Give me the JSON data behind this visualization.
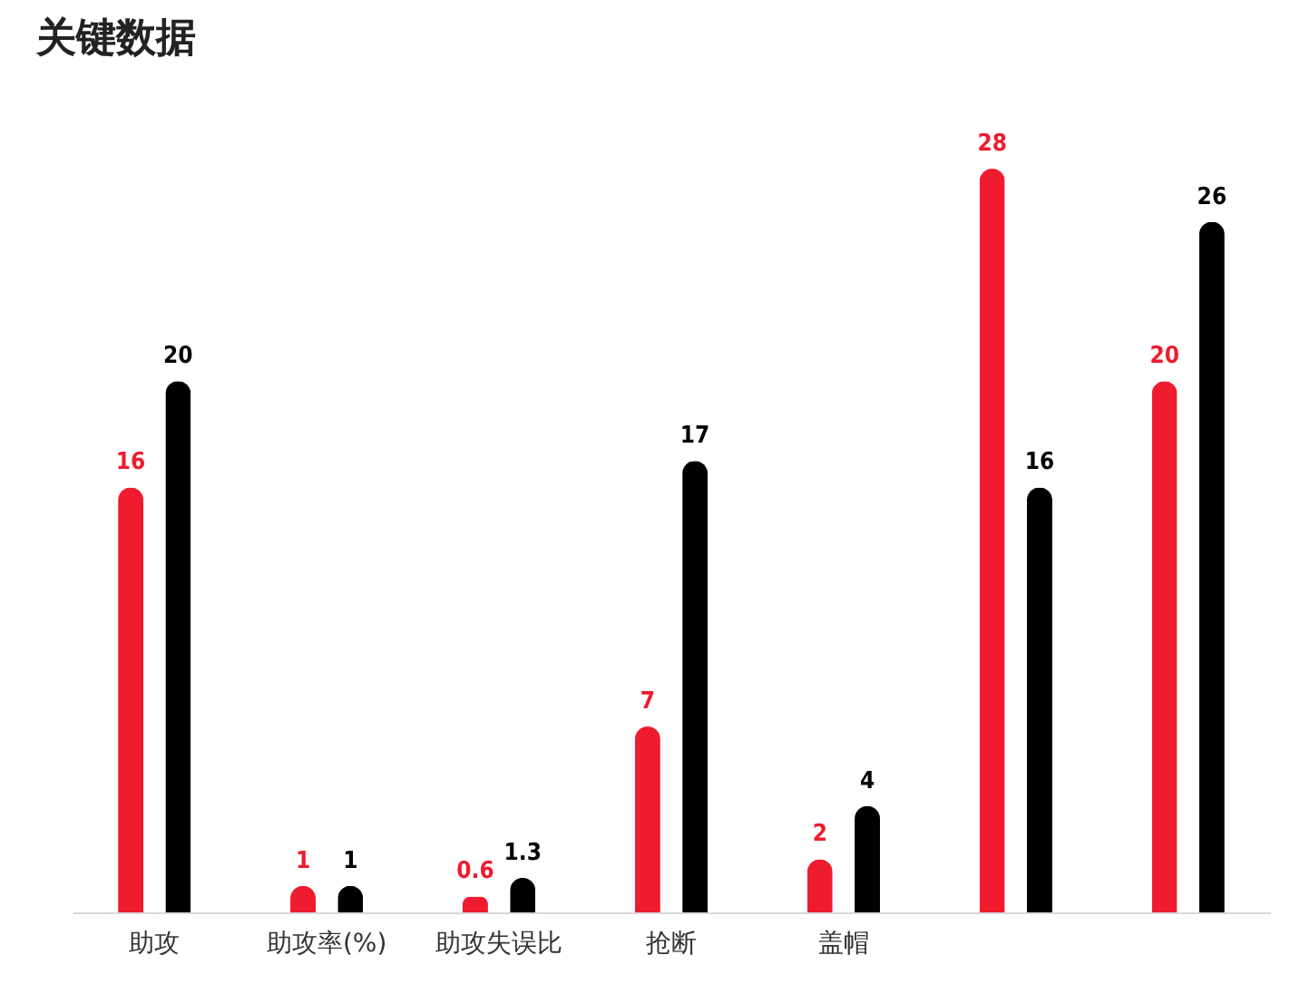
{
  "chart_data": {
    "type": "bar",
    "title": "关键数据",
    "categories": [
      "助攻",
      "助攻率(%)",
      "助攻失误比",
      "抢断",
      "盖帽",
      null,
      null
    ],
    "series": [
      {
        "color": "#ee1c2e",
        "values": [
          16,
          1,
          0.6,
          7,
          2,
          28,
          20
        ]
      },
      {
        "color": "#000000",
        "values": [
          20,
          1,
          1.3,
          17,
          4,
          16,
          26
        ]
      }
    ],
    "data_labels": true
  }
}
